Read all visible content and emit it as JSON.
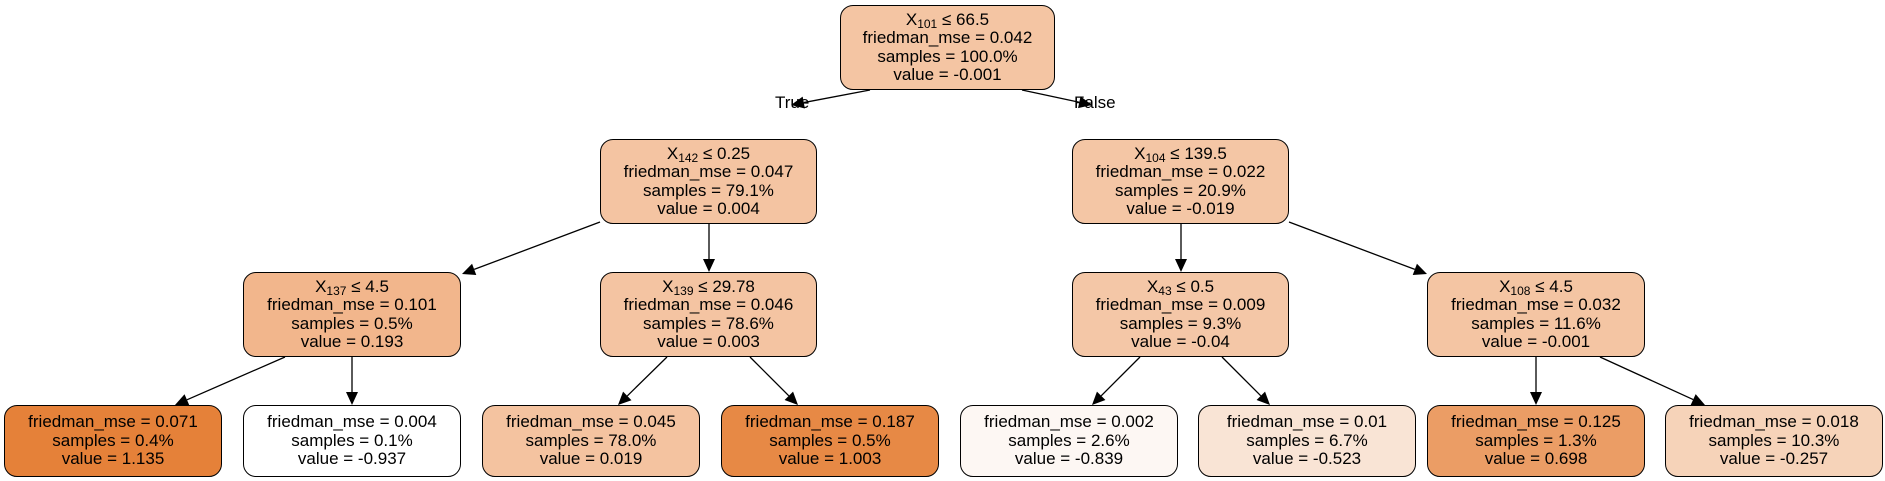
{
  "edge_labels": {
    "true_label": "True",
    "false_label": "False"
  },
  "nodes": [
    {
      "id": 0,
      "feature": "X",
      "index": "101",
      "op": "≤",
      "threshold": "66.5",
      "mse": "friedman_mse = 0.042",
      "samples": "samples = 100.0%",
      "value": "value = -0.001",
      "fill": "#f4c5a3"
    },
    {
      "id": 1,
      "feature": "X",
      "index": "142",
      "op": "≤",
      "threshold": "0.25",
      "mse": "friedman_mse = 0.047",
      "samples": "samples = 79.1%",
      "value": "value = 0.004",
      "fill": "#f4c4a2"
    },
    {
      "id": 2,
      "feature": "X",
      "index": "104",
      "op": "≤",
      "threshold": "139.5",
      "mse": "friedman_mse = 0.022",
      "samples": "samples = 20.9%",
      "value": "value = -0.019",
      "fill": "#f4c6a5"
    },
    {
      "id": 3,
      "feature": "X",
      "index": "137",
      "op": "≤",
      "threshold": "4.5",
      "mse": "friedman_mse = 0.101",
      "samples": "samples = 0.5%",
      "value": "value = 0.193",
      "fill": "#f2b68c"
    },
    {
      "id": 4,
      "feature": "X",
      "index": "139",
      "op": "≤",
      "threshold": "29.78",
      "mse": "friedman_mse = 0.046",
      "samples": "samples = 78.6%",
      "value": "value = 0.003",
      "fill": "#f4c4a2"
    },
    {
      "id": 5,
      "feature": "X",
      "index": "43",
      "op": "≤",
      "threshold": "0.5",
      "mse": "friedman_mse = 0.009",
      "samples": "samples = 9.3%",
      "value": "value = -0.04",
      "fill": "#f4c7a7"
    },
    {
      "id": 6,
      "feature": "X",
      "index": "108",
      "op": "≤",
      "threshold": "4.5",
      "mse": "friedman_mse = 0.032",
      "samples": "samples = 11.6%",
      "value": "value = -0.001",
      "fill": "#f4c5a3"
    },
    {
      "id": 7,
      "mse": "friedman_mse = 0.071",
      "samples": "samples = 0.4%",
      "value": "value = 1.135",
      "fill": "#e58139"
    },
    {
      "id": 8,
      "mse": "friedman_mse = 0.004",
      "samples": "samples = 0.1%",
      "value": "value = -0.937",
      "fill": "#ffffff"
    },
    {
      "id": 9,
      "mse": "friedman_mse = 0.045",
      "samples": "samples = 78.0%",
      "value": "value = 0.019",
      "fill": "#f4c3a0"
    },
    {
      "id": 10,
      "mse": "friedman_mse = 0.187",
      "samples": "samples = 0.5%",
      "value": "value = 1.003",
      "fill": "#e78945"
    },
    {
      "id": 11,
      "mse": "friedman_mse = 0.002",
      "samples": "samples = 2.6%",
      "value": "value = -0.839",
      "fill": "#fdf7f3"
    },
    {
      "id": 12,
      "mse": "friedman_mse = 0.01",
      "samples": "samples = 6.7%",
      "value": "value = -0.523",
      "fill": "#f9e4d5"
    },
    {
      "id": 13,
      "mse": "friedman_mse = 0.125",
      "samples": "samples = 1.3%",
      "value": "value = 0.698",
      "fill": "#eb9d65"
    },
    {
      "id": 14,
      "mse": "friedman_mse = 0.018",
      "samples": "samples = 10.3%",
      "value": "value = -0.257",
      "fill": "#f6d3b9"
    }
  ]
}
